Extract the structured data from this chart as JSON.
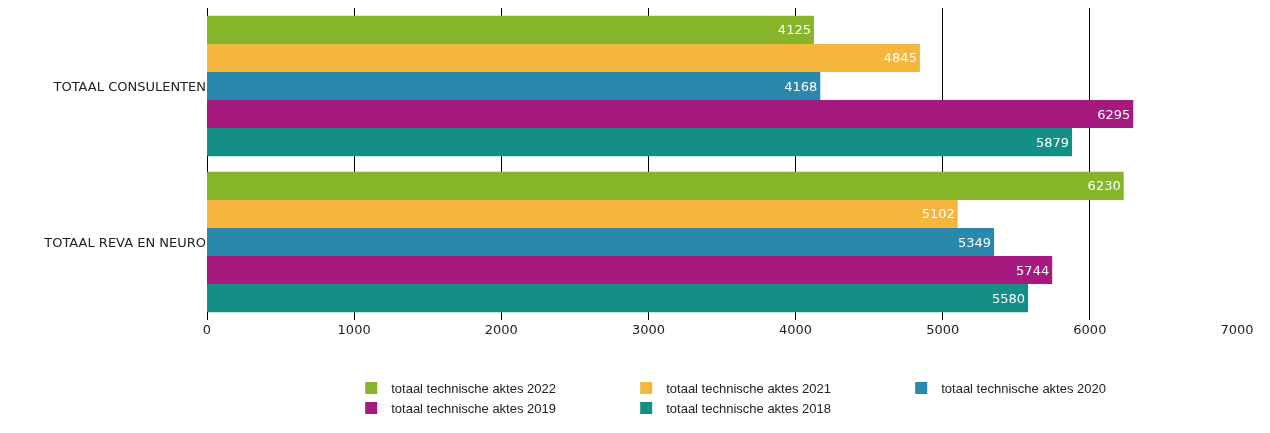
{
  "chart_data": {
    "type": "bar",
    "orientation": "horizontal",
    "categories": [
      "TOTAAL CONSULENTEN",
      "TOTAAL REVA EN NEURO"
    ],
    "series": [
      {
        "name": "totaal technische aktes 2022",
        "color": "#86b52a",
        "values": [
          4125,
          6230
        ]
      },
      {
        "name": "totaal technische aktes 2021",
        "color": "#f4b63c",
        "values": [
          4845,
          5102
        ]
      },
      {
        "name": "totaal technische aktes 2020",
        "color": "#2a87ad",
        "values": [
          4168,
          5349
        ]
      },
      {
        "name": "totaal technische aktes 2019",
        "color": "#a61a7f",
        "values": [
          6295,
          5744
        ]
      },
      {
        "name": "totaal technische aktes 2018",
        "color": "#148f86",
        "values": [
          5879,
          5580
        ]
      }
    ],
    "xlim": [
      0,
      7000
    ],
    "xticks": [
      0,
      1000,
      2000,
      3000,
      4000,
      5000,
      6000,
      7000
    ],
    "grid": "x",
    "legend": "bottom",
    "data_labels": true
  }
}
